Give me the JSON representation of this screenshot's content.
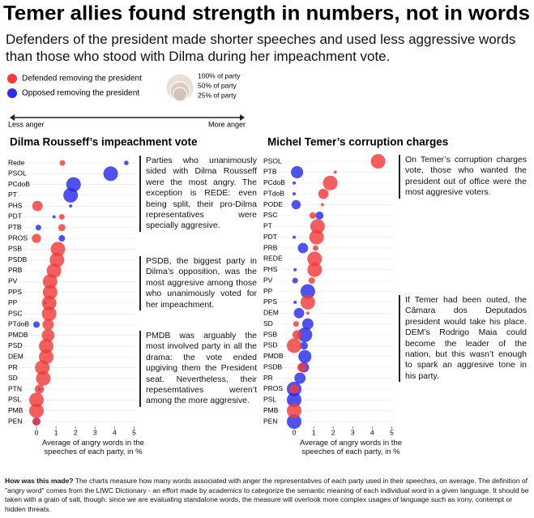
{
  "header": {
    "title": "Temer allies found strength in numbers, not in words",
    "subtitle": "Defenders of the president made shorter speeches and used less aggressive words than those who stood with Dilma during her impeachment vote."
  },
  "legend": {
    "items": [
      {
        "label": "Defended removing the president",
        "color": "#f03c3c"
      },
      {
        "label": "Opposed removing the president",
        "color": "#2b2be8"
      }
    ],
    "sizes": [
      {
        "value": 100,
        "label": "100% of party"
      },
      {
        "value": 50,
        "label": "50% of party"
      },
      {
        "value": 25,
        "label": "25% of party"
      }
    ],
    "less": "Less anger",
    "more": "More anger"
  },
  "chart_data": [
    {
      "type": "bubble",
      "title": "Dilma Rousseff’s impeachment vote",
      "xlabel": "Average of angry words in the speeches of each party, in %",
      "xlim": [
        0,
        5
      ],
      "xticks": [
        0,
        1,
        2,
        3,
        4,
        5
      ],
      "categories": [
        "Rede",
        "PSOL",
        "PCdoB",
        "PT",
        "PHS",
        "PDT",
        "PTB",
        "PROS",
        "PSB",
        "PSDB",
        "PRB",
        "PV",
        "PPS",
        "PP",
        "PSC",
        "PTdoB",
        "PMDB",
        "PSD",
        "DEM",
        "PR",
        "SD",
        "PTN",
        "PSL",
        "PMB",
        "PEN"
      ],
      "series": [
        {
          "color": "#2b2be8",
          "values": [
            4.6,
            3.8,
            1.9,
            1.75,
            1.75,
            0.9,
            0.1,
            1.3,
            null,
            null,
            null,
            null,
            null,
            0.45,
            null,
            0,
            null,
            null,
            null,
            null,
            null,
            0.15,
            null,
            null,
            0
          ],
          "sizes": [
            10,
            100,
            100,
            100,
            5,
            5,
            15,
            20,
            null,
            null,
            null,
            null,
            null,
            5,
            null,
            20,
            null,
            null,
            null,
            null,
            null,
            5,
            null,
            null,
            30
          ]
        },
        {
          "color": "#f03c3c",
          "values": [
            1.33,
            null,
            null,
            null,
            0.05,
            1.3,
            1.3,
            0,
            1.1,
            1.05,
            0.9,
            0.7,
            0.7,
            0.65,
            0.65,
            0.6,
            0.6,
            0.5,
            0.5,
            0.3,
            0.35,
            0.15,
            0,
            0,
            0
          ],
          "sizes": [
            15,
            null,
            null,
            null,
            50,
            15,
            25,
            40,
            100,
            100,
            100,
            100,
            100,
            100,
            100,
            60,
            75,
            100,
            100,
            100,
            100,
            40,
            100,
            100,
            30
          ]
        }
      ],
      "notes": [
        "Parties who unanimously sided with Dilma Rousseff were the most angry. The exception is REDE: even being split, their pro-Dilma representatives were specially aggresive.",
        "PSDB, the biggest party in Dilma’s opposition, was the most aggresive among those who unanimously voted for her impeachment.",
        "PMDB was arguably the most involved party in all the drama: the vote ended upgiving them the President seat. Nevertheless, their repesemtatives weren’t among the more aggresive."
      ]
    },
    {
      "type": "bubble",
      "title": "Michel Temer’s corruption charges",
      "xlabel": "Average of angry words in the speeches of each party, in %",
      "xlim": [
        0,
        5
      ],
      "xticks": [
        0,
        1,
        2,
        3,
        4,
        5
      ],
      "categories": [
        "PSOL",
        "PTB",
        "PCdoB",
        "PTdoB",
        "PODE",
        "PSC",
        "PT",
        "PDT",
        "PRB",
        "REDE",
        "PHS",
        "PV",
        "PP",
        "PPS",
        "DEM",
        "SD",
        "PSB",
        "PSD",
        "PMDB",
        "PSDB",
        "PR",
        "PROS",
        "PSL",
        "PMB",
        "PEN"
      ],
      "series": [
        {
          "color": "#2b2be8",
          "values": [
            null,
            0.15,
            0,
            0,
            0.1,
            1.3,
            null,
            0,
            0.45,
            null,
            0.05,
            0.05,
            0.7,
            0.05,
            0.25,
            0.7,
            0.55,
            0.5,
            0.55,
            0.5,
            0.3,
            0,
            0,
            null,
            0
          ],
          "sizes": [
            null,
            70,
            5,
            5,
            40,
            30,
            null,
            5,
            50,
            null,
            5,
            15,
            100,
            5,
            50,
            60,
            100,
            30,
            80,
            50,
            60,
            100,
            100,
            null,
            100
          ]
        },
        {
          "color": "#f03c3c",
          "values": [
            4.3,
            2.1,
            1.85,
            1.5,
            1.45,
            0.95,
            1.2,
            1.15,
            1.1,
            1.05,
            1.05,
            0.9,
            null,
            0.7,
            0.7,
            0.1,
            0.15,
            0,
            null,
            0.4,
            null,
            0,
            null,
            0,
            null
          ],
          "sizes": [
            100,
            5,
            100,
            50,
            5,
            20,
            100,
            100,
            15,
            100,
            100,
            20,
            null,
            100,
            5,
            15,
            40,
            100,
            null,
            40,
            null,
            40,
            null,
            100,
            null
          ]
        }
      ],
      "notes": [
        "On Temer’s corruption charges vote, those who wanted the president out of office were the most aggresive voters.",
        "If Temer had been outed, the Câmara dos Deputados president would take his place. DEM’s Rodrigo Maia could become the leader of the nation, but this wasn’t enough to spark an aggresive tone in his party."
      ]
    }
  ],
  "footnote": {
    "lead": "How was this made?",
    "text": " The charts measure how many words associated with anger the representatives of each party used in their speeches, on average. The definition of \"angry word\" comes from the LIWC Dictionary - an effort made by academics to categorize the semantic meaning of each individual word in a given language. It should be taken with a grain of salt, though: since we are evaluating standalone words, the measure will overlook more complex usages of language such as irony, contempt or hidden threats."
  }
}
